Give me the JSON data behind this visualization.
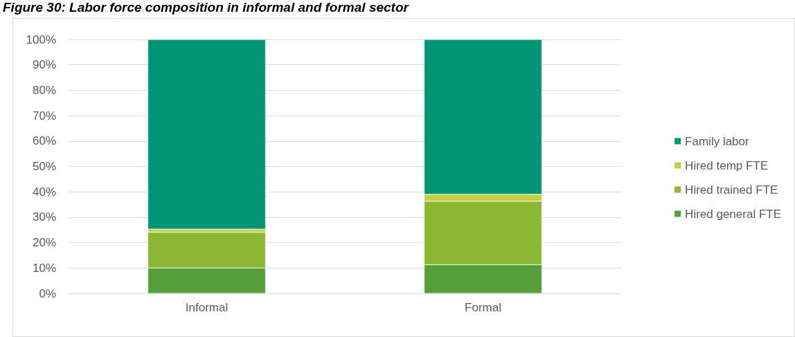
{
  "chart_data": {
    "type": "bar",
    "title": "Figure 30: Labor force composition in informal and formal sector",
    "categories": [
      "Informal",
      "Formal"
    ],
    "stacked": true,
    "series": [
      {
        "name": "Hired general FTE",
        "color": "#559e3a",
        "values": [
          10,
          11.3
        ]
      },
      {
        "name": "Hired trained FTE",
        "color": "#8bb735",
        "values": [
          14.1,
          25
        ]
      },
      {
        "name": "Hired temp FTE",
        "color": "#c3cf3d",
        "values": [
          1.2,
          2.7
        ]
      },
      {
        "name": "Family labor",
        "color": "#029575",
        "values": [
          74.7,
          61
        ]
      }
    ],
    "ylim": [
      0,
      100
    ],
    "yticks": [
      {
        "value": 0,
        "label": "0%"
      },
      {
        "value": 10,
        "label": "10%"
      },
      {
        "value": 20,
        "label": "20%"
      },
      {
        "value": 30,
        "label": "30%"
      },
      {
        "value": 40,
        "label": "40%"
      },
      {
        "value": 50,
        "label": "50%"
      },
      {
        "value": 60,
        "label": "60%"
      },
      {
        "value": 70,
        "label": "70%"
      },
      {
        "value": 80,
        "label": "80%"
      },
      {
        "value": 90,
        "label": "90%"
      },
      {
        "value": 100,
        "label": "100%"
      }
    ],
    "grid": "y",
    "legend": "right"
  }
}
